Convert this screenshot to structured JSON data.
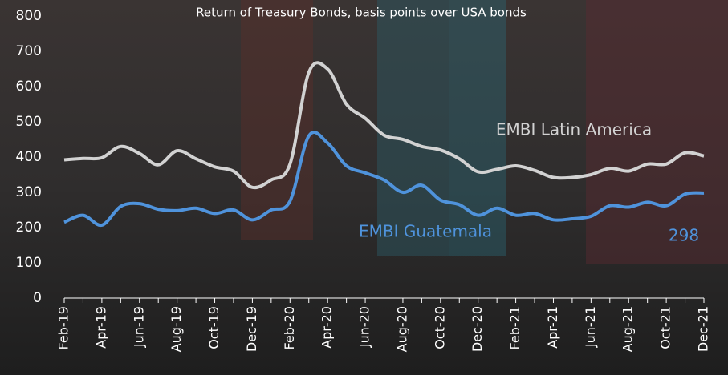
{
  "chart_data": {
    "type": "line",
    "title": "Return of Treasury Bonds, basis points over USA bonds",
    "categories": [
      "Feb-19",
      null,
      "Apr-19",
      null,
      "Jun-19",
      null,
      "Aug-19",
      null,
      "Oct-19",
      null,
      "Dec-19",
      null,
      "Feb-20",
      null,
      "Apr-20",
      null,
      "Jun-20",
      null,
      "Aug-20",
      null,
      "Oct-20",
      null,
      "Dec-20",
      null,
      "Feb-21",
      null,
      "Apr-21",
      null,
      "Jun-21",
      null,
      "Aug-21",
      null,
      "Oct-21",
      null,
      "Dec-21"
    ],
    "series": [
      {
        "name": "EMBI Guatemala",
        "color": "#4f93dc",
        "values": [
          215,
          235,
          207,
          260,
          268,
          252,
          248,
          255,
          240,
          250,
          222,
          250,
          275,
          460,
          440,
          375,
          355,
          335,
          300,
          320,
          278,
          265,
          235,
          255,
          235,
          240,
          222,
          225,
          232,
          262,
          258,
          272,
          262,
          295,
          298
        ]
      },
      {
        "name": "EMBI Latin America",
        "color": "#d2d2d2",
        "values": [
          392,
          396,
          398,
          430,
          410,
          378,
          418,
          395,
          372,
          360,
          314,
          335,
          380,
          640,
          650,
          550,
          510,
          462,
          450,
          430,
          420,
          395,
          358,
          365,
          375,
          362,
          342,
          342,
          350,
          368,
          360,
          380,
          380,
          412,
          403
        ]
      }
    ],
    "ylim": [
      0,
      800
    ],
    "yticks": [
      0,
      100,
      200,
      300,
      400,
      500,
      600,
      700,
      800
    ]
  }
}
